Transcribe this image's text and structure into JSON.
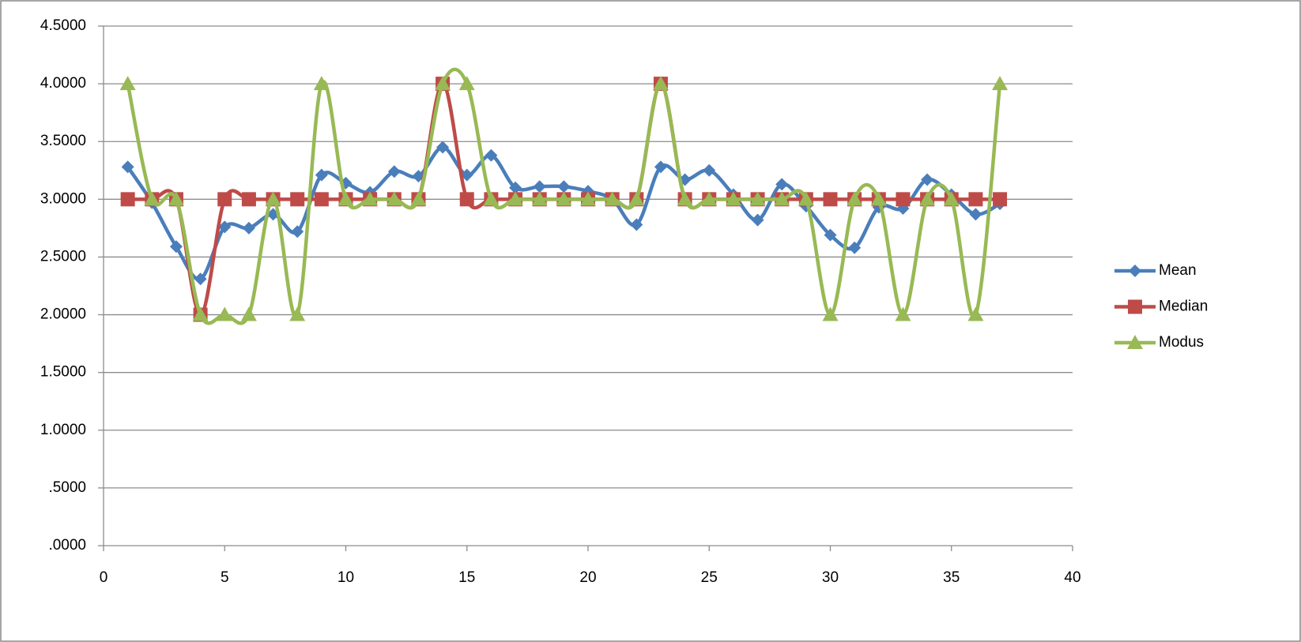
{
  "chart_data": {
    "type": "line",
    "smooth": true,
    "legend": "right",
    "grid": true,
    "x": [
      1,
      2,
      3,
      4,
      5,
      6,
      7,
      8,
      9,
      10,
      11,
      12,
      13,
      14,
      15,
      16,
      17,
      18,
      19,
      20,
      21,
      22,
      23,
      24,
      25,
      26,
      27,
      28,
      29,
      30,
      31,
      32,
      33,
      34,
      35,
      36,
      37
    ],
    "series": [
      {
        "name": "Mean",
        "color": "#4a7ebb",
        "marker": "diamond",
        "values": [
          3.28,
          2.97,
          2.59,
          2.31,
          2.76,
          2.75,
          2.87,
          2.72,
          3.21,
          3.14,
          3.06,
          3.24,
          3.2,
          3.45,
          3.21,
          3.38,
          3.1,
          3.11,
          3.11,
          3.07,
          3.0,
          2.78,
          3.28,
          3.17,
          3.25,
          3.04,
          2.82,
          3.13,
          2.94,
          2.69,
          2.58,
          2.93,
          2.92,
          3.17,
          3.04,
          2.87,
          2.96
        ]
      },
      {
        "name": "Median",
        "color": "#be4b48",
        "marker": "square",
        "values": [
          3,
          3,
          3,
          2,
          3,
          3,
          3,
          3,
          3,
          3,
          3,
          3,
          3,
          4,
          3,
          3,
          3,
          3,
          3,
          3,
          3,
          3,
          4,
          3,
          3,
          3,
          3,
          3,
          3,
          3,
          3,
          3,
          3,
          3,
          3,
          3,
          3
        ]
      },
      {
        "name": "Modus",
        "color": "#98b954",
        "marker": "triangle",
        "values": [
          4,
          3,
          3,
          2,
          2,
          2,
          3,
          2,
          4,
          3,
          3,
          3,
          3,
          4,
          4,
          3,
          3,
          3,
          3,
          3,
          3,
          3,
          4,
          3,
          3,
          3,
          3,
          3,
          3,
          2,
          3,
          3,
          2,
          3,
          3,
          2,
          4
        ]
      }
    ],
    "xlim": [
      0,
      40
    ],
    "xticks": [
      0,
      5,
      10,
      15,
      20,
      25,
      30,
      35,
      40
    ],
    "ylim": [
      0,
      4.5
    ],
    "yticks": [
      {
        "value": 0,
        "label": ".0000"
      },
      {
        "value": 0.5,
        "label": ".5000"
      },
      {
        "value": 1,
        "label": "1.0000"
      },
      {
        "value": 1.5,
        "label": "1.5000"
      },
      {
        "value": 2,
        "label": "2.0000"
      },
      {
        "value": 2.5,
        "label": "2.5000"
      },
      {
        "value": 3,
        "label": "3.0000"
      },
      {
        "value": 3.5,
        "label": "3.5000"
      },
      {
        "value": 4,
        "label": "4.0000"
      },
      {
        "value": 4.5,
        "label": "4.5000"
      }
    ]
  }
}
